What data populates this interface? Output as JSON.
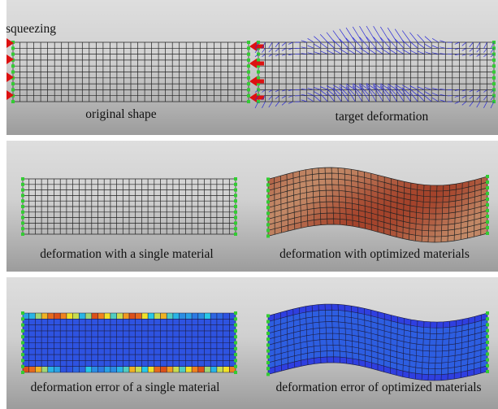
{
  "figure": {
    "annotation": "squeezing",
    "panels": [
      {
        "id": "original",
        "caption": "original shape"
      },
      {
        "id": "target",
        "caption": "target deformation"
      },
      {
        "id": "single",
        "caption": "deformation with a single material"
      },
      {
        "id": "optimized",
        "caption": "deformation with optimized materials"
      },
      {
        "id": "error-single",
        "caption": "deformation error of a single material"
      },
      {
        "id": "error-optimized",
        "caption": "deformation error of optimized materials"
      }
    ],
    "colors": {
      "arrow": "#dd1111",
      "vector": "#2b2bd6",
      "mesh": "#222222",
      "anchor": "#33cc33",
      "material-red": "#a4432b",
      "material-tan": "#b58a6a",
      "error-low": "#2f3fe0",
      "error-high": "#e03a1a"
    }
  }
}
